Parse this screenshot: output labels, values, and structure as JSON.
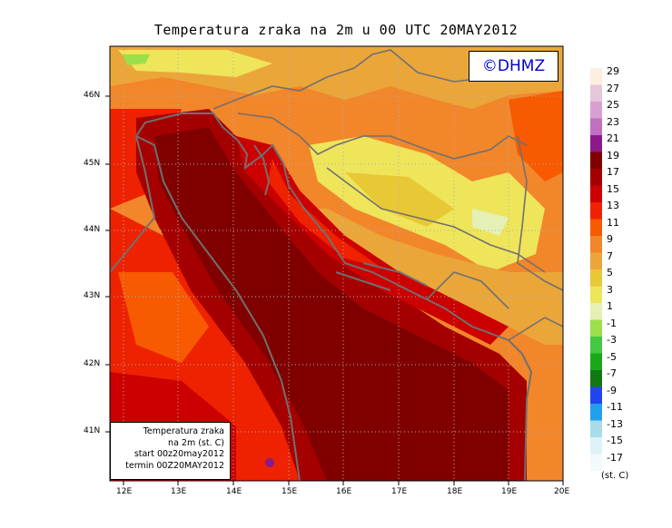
{
  "title": "Temperatura zraka na 2m u 00 UTC 20MAY2012",
  "copyright": "©DHMZ",
  "info_box": {
    "line1": "Temperatura zraka",
    "line2": "na 2m (st. C)",
    "line3": "start 00z20may2012",
    "line4": "termin 00Z20MAY2012"
  },
  "x_ticks": [
    "12E",
    "13E",
    "14E",
    "15E",
    "16E",
    "17E",
    "18E",
    "19E",
    "20E"
  ],
  "y_ticks": [
    "46N",
    "45N",
    "44N",
    "43N",
    "42N",
    "41N"
  ],
  "legend": {
    "unit": "(st. C)",
    "labels": [
      "29",
      "27",
      "25",
      "23",
      "21",
      "19",
      "17",
      "15",
      "13",
      "11",
      "9",
      "7",
      "5",
      "3",
      "1",
      "-1",
      "-3",
      "-5",
      "-7",
      "-9",
      "-11",
      "-13",
      "-15",
      "-17"
    ],
    "colors": [
      "#fdeee0",
      "#e6c6da",
      "#d8a0d0",
      "#c070c0",
      "#8a1a8a",
      "#800000",
      "#a50000",
      "#cc0000",
      "#ee2200",
      "#f75a00",
      "#f2862a",
      "#eba63a",
      "#e8c835",
      "#eee55a",
      "#e5f0b5",
      "#9ae04a",
      "#44c844",
      "#1aa81a",
      "#127812",
      "#2244ee",
      "#22a0ee",
      "#a8dcea",
      "#def2f8",
      "#f2fafc"
    ]
  },
  "color_legend_meaning": "2m air temperature in degrees C"
}
